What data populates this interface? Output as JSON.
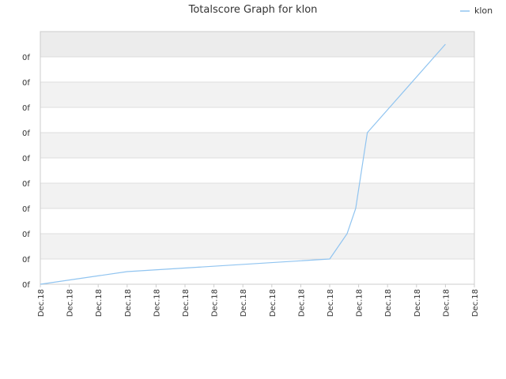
{
  "chart_data": {
    "type": "line",
    "title": "Totalscore Graph for klon",
    "xlabel": "",
    "ylabel": "",
    "x_tick_labels": [
      "Dec.18",
      "Dec.18",
      "Dec.18",
      "Dec.18",
      "Dec.18",
      "Dec.18",
      "Dec.18",
      "Dec.18",
      "Dec.18",
      "Dec.18",
      "Dec.18",
      "Dec.18",
      "Dec.18",
      "Dec.18",
      "Dec.18",
      "Dec.18"
    ],
    "y_tick_labels": [
      "0f",
      "0f",
      "0f",
      "0f",
      "0f",
      "0f",
      "0f",
      "0f",
      "0f",
      "0f"
    ],
    "ylim": [
      0,
      9
    ],
    "xlim": [
      0,
      15
    ],
    "grid": true,
    "legend_position": "top-right",
    "series": [
      {
        "name": "klon",
        "color": "#90c4f0",
        "x": [
          0,
          3,
          10,
          10.6,
          10.9,
          11.3,
          14
        ],
        "y": [
          0,
          0.5,
          1.0,
          2.0,
          3.0,
          6.0,
          9.5
        ]
      }
    ]
  },
  "colors": {
    "band_dark": "#f2f2f2",
    "band_light": "#ffffff",
    "band_top": "#ececec",
    "grid_line": "#dddddd",
    "axis_line": "#cccccc"
  }
}
